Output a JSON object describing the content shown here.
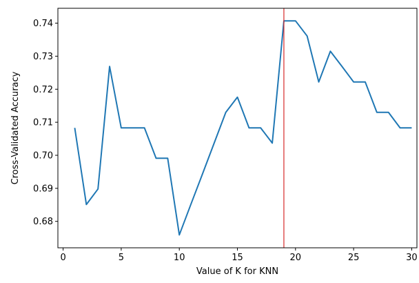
{
  "chart_data": {
    "type": "line",
    "xlabel": "Value of K for KNN",
    "ylabel": "Cross-Validated Accuracy",
    "xlim": [
      -0.45,
      30.45
    ],
    "ylim": [
      0.672,
      0.7445
    ],
    "xticks": [
      0,
      5,
      10,
      15,
      20,
      25,
      30
    ],
    "xtick_labels": [
      "0",
      "5",
      "10",
      "15",
      "20",
      "25",
      "30"
    ],
    "yticks": [
      0.68,
      0.69,
      0.7,
      0.71,
      0.72,
      0.73,
      0.74
    ],
    "ytick_labels": [
      "0.68",
      "0.69",
      "0.70",
      "0.71",
      "0.72",
      "0.73",
      "0.74"
    ],
    "grid": false,
    "series": [
      {
        "color": "#1f77b4",
        "x": [
          1,
          2,
          3,
          4,
          5,
          6,
          7,
          8,
          9,
          10,
          11,
          12,
          13,
          14,
          15,
          16,
          17,
          18,
          19,
          20,
          21,
          22,
          23,
          24,
          25,
          26,
          27,
          28,
          29,
          30
        ],
        "y": [
          0.7083,
          0.6851,
          0.6898,
          0.7269,
          0.7083,
          0.7083,
          0.7083,
          0.6991,
          0.6991,
          0.6759,
          0.6852,
          0.6944,
          0.7037,
          0.713,
          0.7176,
          0.7083,
          0.7083,
          0.7037,
          0.7407,
          0.7407,
          0.7361,
          0.7222,
          0.7315,
          0.7269,
          0.7222,
          0.7222,
          0.713,
          0.713,
          0.7083,
          0.7083
        ]
      }
    ],
    "vline": {
      "x": 19,
      "color": "#d62728"
    }
  }
}
